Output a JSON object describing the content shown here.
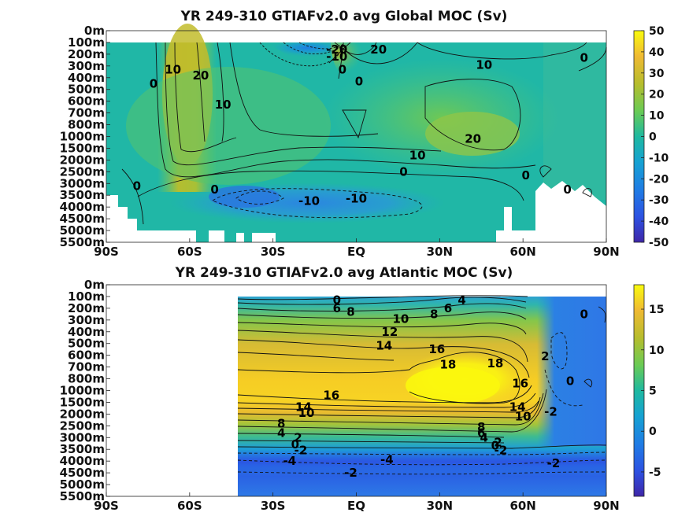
{
  "chart_data": [
    {
      "type": "heatmap",
      "title": "YR 249-310 GTIAFv2.0 avg  Global MOC (Sv)",
      "xlabel": "",
      "ylabel": "",
      "x_ticks": [
        "90S",
        "60S",
        "30S",
        "EQ",
        "30N",
        "60N",
        "90N"
      ],
      "y_ticks": [
        "0m",
        "100m",
        "200m",
        "300m",
        "400m",
        "500m",
        "600m",
        "700m",
        "800m",
        "1000m",
        "1500m",
        "2000m",
        "2500m",
        "3000m",
        "3500m",
        "4000m",
        "4500m",
        "5000m",
        "5500m"
      ],
      "colorbar": {
        "min": -50,
        "max": 50,
        "ticks": [
          "50",
          "40",
          "30",
          "20",
          "10",
          "0",
          "-10",
          "-20",
          "-30",
          "-40",
          "-50"
        ]
      },
      "contour_labels": [
        {
          "text": "10",
          "lat": -66,
          "dep": 3.3
        },
        {
          "text": "0",
          "lat": -73,
          "dep": 4.5
        },
        {
          "text": "20",
          "lat": -56,
          "dep": 3.8
        },
        {
          "text": "10",
          "lat": -48,
          "dep": 6.3
        },
        {
          "text": "0",
          "lat": -79,
          "dep": 13.2
        },
        {
          "text": "0",
          "lat": -51,
          "dep": 13.5
        },
        {
          "text": "-10",
          "lat": -17,
          "dep": 14.5
        },
        {
          "text": "-10",
          "lat": 0,
          "dep": 14.3
        },
        {
          "text": "-20",
          "lat": -7,
          "dep": 1.6
        },
        {
          "text": "-10",
          "lat": -7,
          "dep": 2.2
        },
        {
          "text": "20",
          "lat": 8,
          "dep": 1.6
        },
        {
          "text": "0",
          "lat": -5,
          "dep": 3.3
        },
        {
          "text": "0",
          "lat": 1,
          "dep": 4.3
        },
        {
          "text": "10",
          "lat": 46,
          "dep": 2.9
        },
        {
          "text": "0",
          "lat": 82,
          "dep": 2.3
        },
        {
          "text": "20",
          "lat": 42,
          "dep": 9.2
        },
        {
          "text": "10",
          "lat": 22,
          "dep": 10.6
        },
        {
          "text": "0",
          "lat": 17,
          "dep": 12.0
        },
        {
          "text": "0",
          "lat": 61,
          "dep": 12.3
        },
        {
          "text": "0",
          "lat": 76,
          "dep": 13.5
        }
      ]
    },
    {
      "type": "heatmap",
      "title": "YR 249-310 GTIAFv2.0 avg  Atlantic MOC (Sv)",
      "xlabel": "",
      "ylabel": "",
      "x_ticks": [
        "90S",
        "60S",
        "30S",
        "EQ",
        "30N",
        "60N",
        "90N"
      ],
      "y_ticks": [
        "0m",
        "100m",
        "200m",
        "300m",
        "400m",
        "500m",
        "600m",
        "700m",
        "800m",
        "1000m",
        "1500m",
        "2000m",
        "2500m",
        "3000m",
        "3500m",
        "4000m",
        "4500m",
        "5000m",
        "5500m"
      ],
      "colorbar": {
        "min": -8,
        "max": 18,
        "ticks": [
          "15",
          "10",
          "5",
          "0",
          "-5"
        ]
      },
      "contour_labels": [
        {
          "text": "0",
          "lat": -7,
          "dep": 1.3
        },
        {
          "text": "6",
          "lat": -7,
          "dep": 2.0
        },
        {
          "text": "8",
          "lat": -2,
          "dep": 2.3
        },
        {
          "text": "4",
          "lat": 38,
          "dep": 1.3
        },
        {
          "text": "6",
          "lat": 33,
          "dep": 2.0
        },
        {
          "text": "8",
          "lat": 28,
          "dep": 2.5
        },
        {
          "text": "10",
          "lat": 16,
          "dep": 2.9
        },
        {
          "text": "12",
          "lat": 12,
          "dep": 4.0
        },
        {
          "text": "14",
          "lat": 10,
          "dep": 5.2
        },
        {
          "text": "16",
          "lat": 29,
          "dep": 5.5
        },
        {
          "text": "18",
          "lat": 33,
          "dep": 6.8
        },
        {
          "text": "18",
          "lat": 50,
          "dep": 6.7
        },
        {
          "text": "16",
          "lat": 59,
          "dep": 8.4
        },
        {
          "text": "14",
          "lat": 58,
          "dep": 10.4
        },
        {
          "text": "10",
          "lat": 60,
          "dep": 11.2
        },
        {
          "text": "16",
          "lat": -9,
          "dep": 9.4
        },
        {
          "text": "14",
          "lat": -19,
          "dep": 10.4
        },
        {
          "text": "10",
          "lat": -18,
          "dep": 10.9
        },
        {
          "text": "8",
          "lat": -27,
          "dep": 11.8
        },
        {
          "text": "4",
          "lat": -27,
          "dep": 12.6
        },
        {
          "text": "2",
          "lat": -21,
          "dep": 13.0
        },
        {
          "text": "0",
          "lat": -22,
          "dep": 13.6
        },
        {
          "text": "-2",
          "lat": -20,
          "dep": 14.1
        },
        {
          "text": "-4",
          "lat": -24,
          "dep": 15.0
        },
        {
          "text": "-4",
          "lat": 11,
          "dep": 14.9
        },
        {
          "text": "-2",
          "lat": -2,
          "dep": 16.0
        },
        {
          "text": "8",
          "lat": 45,
          "dep": 12.1
        },
        {
          "text": "6",
          "lat": 45,
          "dep": 12.6
        },
        {
          "text": "4",
          "lat": 46,
          "dep": 13.0
        },
        {
          "text": "2",
          "lat": 51,
          "dep": 13.4
        },
        {
          "text": "0",
          "lat": 50,
          "dep": 13.7
        },
        {
          "text": "-2",
          "lat": 52,
          "dep": 14.1
        },
        {
          "text": "-2",
          "lat": 71,
          "dep": 15.2
        },
        {
          "text": "2",
          "lat": 68,
          "dep": 6.1
        },
        {
          "text": "0",
          "lat": 77,
          "dep": 8.2
        },
        {
          "text": "-2",
          "lat": 70,
          "dep": 10.8
        },
        {
          "text": "0",
          "lat": 82,
          "dep": 2.5
        }
      ]
    }
  ]
}
